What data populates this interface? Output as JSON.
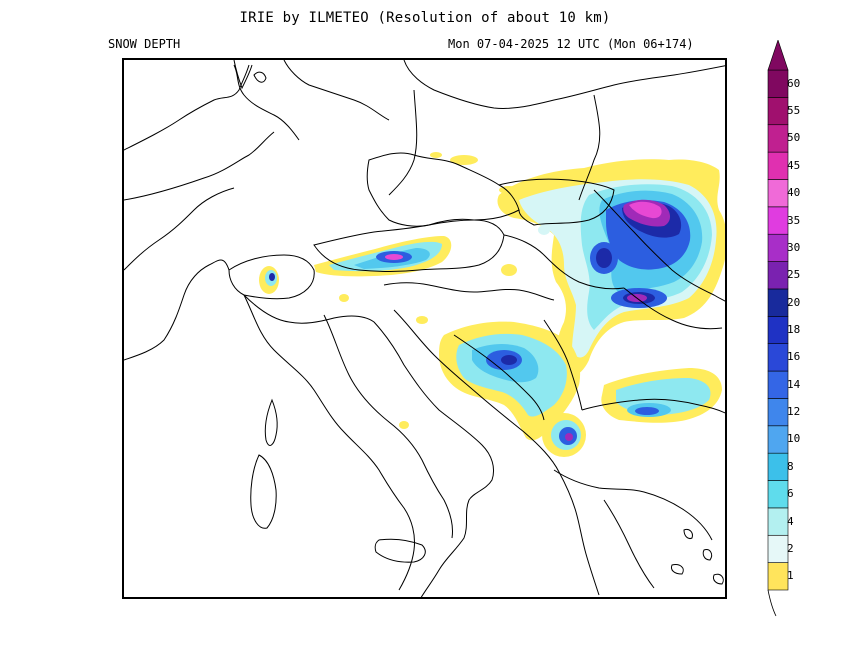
{
  "header": {
    "title": "IRIE by ILMETEO (Resolution of about 10 km)",
    "field": "SNOW DEPTH",
    "valid_time": "Mon 07-04-2025 12 UTC (Mon 06+174)"
  },
  "legend": {
    "levels": [
      "1",
      "2",
      "4",
      "6",
      "8",
      "10",
      "12",
      "14",
      "16",
      "18",
      "20",
      "25",
      "30",
      "35",
      "40",
      "45",
      "50",
      "55",
      "60"
    ],
    "colors": [
      "#ffe45c",
      "#e6f8f8",
      "#b3f0f0",
      "#5fdcec",
      "#3cc0ea",
      "#4fa6f0",
      "#3f86ec",
      "#3466e6",
      "#2a48d8",
      "#1f32c4",
      "#182a9c",
      "#7a22b0",
      "#a82ec8",
      "#e03ce0",
      "#f06ad8",
      "#e030b0",
      "#c02090",
      "#a0106e",
      "#800860"
    ]
  },
  "map": {
    "description_icon": "europe-coastline-map",
    "snow_colors": {
      "yellow": "#ffec5c",
      "light": "#d6f6f6",
      "cyan": "#8ee8f0",
      "mid": "#52c8ee",
      "blue": "#2c5ee0",
      "dark": "#1c2aa8",
      "magenta": "#e848d4",
      "purple": "#a02ab8"
    }
  }
}
